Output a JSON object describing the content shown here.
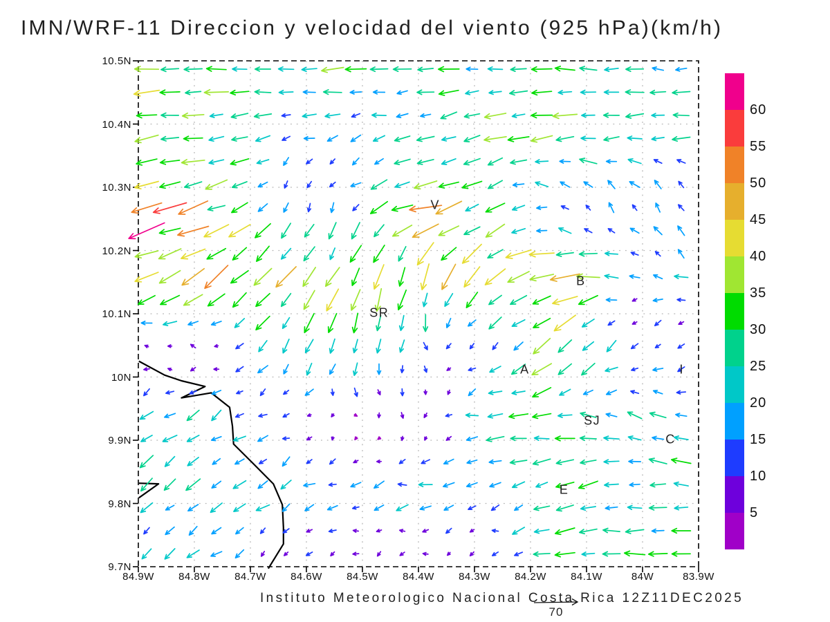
{
  "title": "IMN/WRF-11 Direccion y velocidad del viento (925 hPa)(km/h)",
  "footer": "Instituto Meteorologico Nacional Costa Rica  12Z11DEC2025",
  "chart_data": {
    "type": "quiver",
    "model": "IMN/WRF-11",
    "variable": "Direccion y velocidad del viento",
    "level": "925 hPa",
    "units": "km/h",
    "valid_time": "12Z11DEC2025",
    "source": "Instituto Meteorologico Nacional Costa Rica",
    "lon_ticks": [
      "84.9W",
      "84.8W",
      "84.7W",
      "84.6W",
      "84.5W",
      "84.4W",
      "84.3W",
      "84.2W",
      "84.1W",
      "84W",
      "83.9W"
    ],
    "lat_ticks": [
      "10.5N",
      "10.4N",
      "10.3N",
      "10.2N",
      "10.1N",
      "10N",
      "9.9N",
      "9.8N",
      "9.7N"
    ],
    "lon_range_deg": [
      -84.9,
      -83.9
    ],
    "lat_range_deg": [
      9.7,
      10.5
    ],
    "grid": {
      "cols": 24,
      "rows": 22
    },
    "colorbar": {
      "levels": [
        5,
        10,
        15,
        20,
        25,
        30,
        35,
        40,
        45,
        50,
        55,
        60
      ],
      "labels_top_down": [
        "60",
        "55",
        "50",
        "45",
        "40",
        "35",
        "30",
        "25",
        "20",
        "15",
        "10",
        "5"
      ],
      "colors_low_to_high": [
        "#A000C8",
        "#6E00DC",
        "#1E3CFF",
        "#00A0FF",
        "#00C8C8",
        "#00D28C",
        "#00DC00",
        "#A0E632",
        "#E6DC32",
        "#E6AF2D",
        "#F08228",
        "#FA3C3C",
        "#F0008C"
      ]
    },
    "reference_vector": {
      "label": "70",
      "speed_kmh": 70
    },
    "cities": [
      {
        "label": "V",
        "lon": -84.37,
        "lat": 10.27
      },
      {
        "label": "SR",
        "lon": -84.47,
        "lat": 10.1
      },
      {
        "label": "B",
        "lon": -84.11,
        "lat": 10.15
      },
      {
        "label": "A",
        "lon": -84.21,
        "lat": 10.01
      },
      {
        "label": "SJ",
        "lon": -84.09,
        "lat": 9.93
      },
      {
        "label": "C",
        "lon": -83.95,
        "lat": 9.9
      },
      {
        "label": "E",
        "lon": -84.14,
        "lat": 9.82
      },
      {
        "label": "I",
        "lon": -83.93,
        "lat": 10.01
      }
    ],
    "coastline_lonlat": [
      [
        -84.899,
        10.025
      ],
      [
        -84.853,
        10.003
      ],
      [
        -84.823,
        9.994
      ],
      [
        -84.781,
        9.985
      ],
      [
        -84.823,
        9.967
      ],
      [
        -84.77,
        9.975
      ],
      [
        -84.737,
        9.952
      ],
      [
        -84.732,
        9.922
      ],
      [
        -84.73,
        9.894
      ],
      [
        -84.696,
        9.864
      ],
      [
        -84.659,
        9.831
      ],
      [
        -84.643,
        9.798
      ],
      [
        -84.641,
        9.762
      ],
      [
        -84.641,
        9.736
      ],
      [
        -84.664,
        9.703
      ],
      [
        -84.668,
        9.697
      ]
    ],
    "coastline_spit_lonlat": [
      [
        -84.899,
        9.832
      ],
      [
        -84.864,
        9.831
      ],
      [
        -84.899,
        9.809
      ]
    ],
    "wind_field_sample": {
      "comment_fx_fy": "fractional plot coords, fx 0=84.9W..1=83.9W, fy 0=10.5N..1=9.7N; u eastward, v northward, km/h",
      "fx": [
        0,
        0.125,
        0.25,
        0.375,
        0.5,
        0.625,
        0.75,
        0.875,
        1
      ],
      "fy": [
        0,
        0.143,
        0.286,
        0.429,
        0.571,
        0.714,
        0.857,
        1
      ],
      "u": [
        [
          -30,
          -32,
          -30,
          -30,
          -28,
          -26,
          -25,
          -22,
          -20
        ],
        [
          -45,
          -30,
          -16,
          -15,
          -20,
          -28,
          -34,
          -30,
          -24
        ],
        [
          -55,
          -40,
          -6,
          -8,
          -45,
          -25,
          -10,
          -8,
          -5
        ],
        [
          -40,
          -38,
          -25,
          -15,
          -10,
          -30,
          -46,
          -12,
          -18
        ],
        [
          -5,
          -6,
          -10,
          -8,
          3,
          -8,
          -30,
          -6,
          -8
        ],
        [
          -18,
          -18,
          -10,
          4,
          2,
          -28,
          -24,
          -22,
          -28
        ],
        [
          -18,
          -18,
          -18,
          -16,
          -20,
          -12,
          -30,
          -22,
          -24
        ],
        [
          -12,
          -15,
          -6,
          -6,
          -4,
          -5,
          -28,
          -30,
          -28
        ]
      ],
      "v": [
        [
          -2,
          0,
          0,
          0,
          0,
          0,
          0,
          0,
          0
        ],
        [
          -6,
          -3,
          -5,
          -3,
          -8,
          -8,
          -5,
          -3,
          0
        ],
        [
          -18,
          -12,
          -18,
          -14,
          -10,
          -15,
          10,
          14,
          16
        ],
        [
          -15,
          -28,
          -28,
          -30,
          -40,
          -22,
          -8,
          4,
          8
        ],
        [
          3,
          2,
          -20,
          -28,
          -12,
          -6,
          -30,
          -10,
          -14
        ],
        [
          -12,
          -12,
          -4,
          -2,
          -8,
          -3,
          2,
          10,
          6
        ],
        [
          -14,
          -14,
          -12,
          -5,
          -3,
          -5,
          -12,
          -2,
          2
        ],
        [
          -10,
          -12,
          -3,
          -2,
          -3,
          -3,
          2,
          2,
          2
        ]
      ]
    }
  }
}
